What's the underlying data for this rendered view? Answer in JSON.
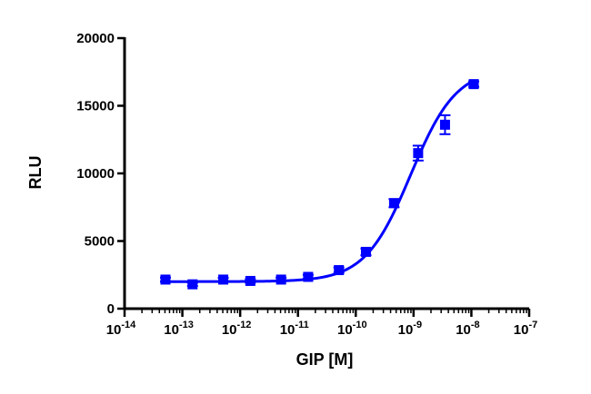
{
  "chart_data": {
    "type": "scatter",
    "title": "",
    "xlabel": "GIP [M]",
    "ylabel": "RLU",
    "xscale": "log",
    "xlim": [
      1e-14,
      1e-07
    ],
    "ylim": [
      0,
      20000
    ],
    "grid": false,
    "legend": "none",
    "y_ticks": [
      {
        "value": 0,
        "label": "0"
      },
      {
        "value": 5000,
        "label": "5000"
      },
      {
        "value": 10000,
        "label": "10000"
      },
      {
        "value": 15000,
        "label": "15000"
      },
      {
        "value": 20000,
        "label": "20000"
      }
    ],
    "x_ticks": [
      {
        "value": 1e-14,
        "base": "10",
        "exp": "-14"
      },
      {
        "value": 1e-13,
        "base": "10",
        "exp": "-13"
      },
      {
        "value": 1e-12,
        "base": "10",
        "exp": "-12"
      },
      {
        "value": 1e-11,
        "base": "10",
        "exp": "-11"
      },
      {
        "value": 1e-10,
        "base": "10",
        "exp": "-10"
      },
      {
        "value": 1e-09,
        "base": "10",
        "exp": "-9"
      },
      {
        "value": 1e-08,
        "base": "10",
        "exp": "-8"
      },
      {
        "value": 1e-07,
        "base": "10",
        "exp": "-7"
      }
    ],
    "series": [
      {
        "marker": "square",
        "color": "#0000ff",
        "fit": "sigmoidal dose-response",
        "points": [
          {
            "x": 5.1e-14,
            "y": 2150,
            "err": 150
          },
          {
            "x": 1.5e-13,
            "y": 1800,
            "err": 120
          },
          {
            "x": 5.1e-13,
            "y": 2150,
            "err": 130
          },
          {
            "x": 1.5e-12,
            "y": 2050,
            "err": 130
          },
          {
            "x": 5.1e-12,
            "y": 2150,
            "err": 140
          },
          {
            "x": 1.5e-11,
            "y": 2350,
            "err": 150
          },
          {
            "x": 5.1e-11,
            "y": 2850,
            "err": 200
          },
          {
            "x": 1.5e-10,
            "y": 4200,
            "err": 250
          },
          {
            "x": 4.6e-10,
            "y": 7800,
            "err": 300
          },
          {
            "x": 1.2e-09,
            "y": 11500,
            "err": 550
          },
          {
            "x": 3.5e-09,
            "y": 13600,
            "err": 700
          },
          {
            "x": 1.1e-08,
            "y": 16600,
            "err": 200
          }
        ],
        "curve": {
          "bottom": 2000,
          "top": 17800,
          "logEC50": -9.05,
          "hill": 1.1
        }
      }
    ]
  }
}
